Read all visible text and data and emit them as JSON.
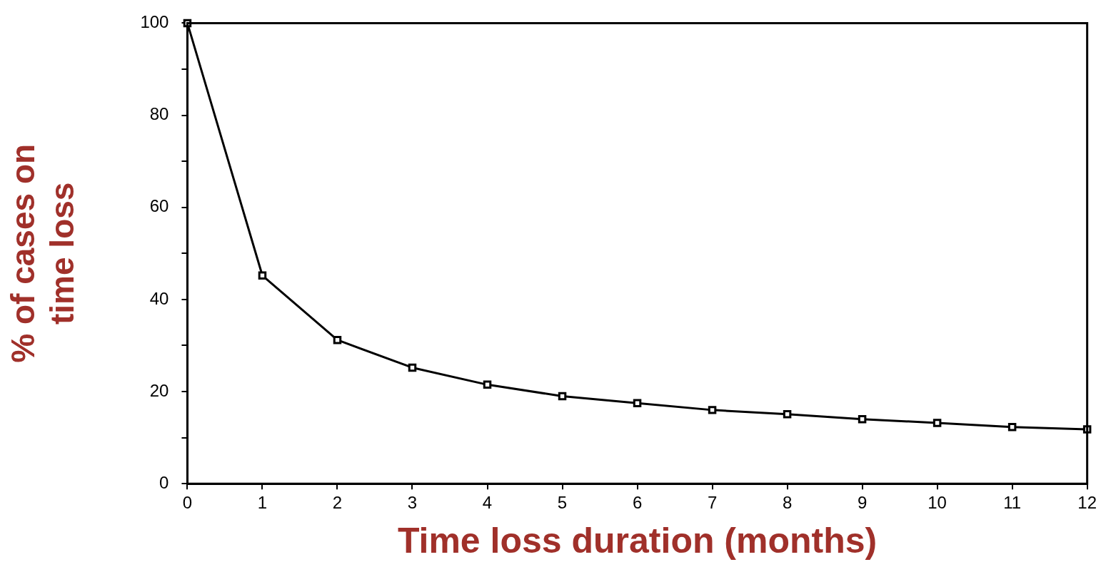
{
  "chart_data": {
    "type": "line",
    "xlabel": "Time loss duration (months)",
    "ylabel": "% of cases on time loss",
    "x": [
      0,
      1,
      2,
      3,
      4,
      5,
      6,
      7,
      8,
      9,
      10,
      11,
      12
    ],
    "series": [
      {
        "color": "#000000",
        "values": [
          100,
          45.2,
          31.2,
          25.2,
          21.5,
          19.0,
          17.5,
          16.0,
          15.1,
          14.0,
          13.2,
          12.3,
          11.8
        ]
      }
    ],
    "xlim": [
      0,
      12
    ],
    "xticks": [
      0,
      1,
      2,
      3,
      4,
      5,
      6,
      7,
      8,
      9,
      10,
      11,
      12
    ],
    "ylim": [
      0,
      100
    ],
    "yticks": [
      0,
      {
        "value": 10,
        "label": null
      },
      20,
      {
        "value": 30,
        "label": null
      },
      40,
      {
        "value": 50,
        "label": null
      },
      60,
      {
        "value": 70,
        "label": null
      },
      80,
      {
        "value": 90,
        "label": null
      },
      100
    ],
    "grid": false,
    "legend": false,
    "marker": "square",
    "line_style": "solid"
  }
}
